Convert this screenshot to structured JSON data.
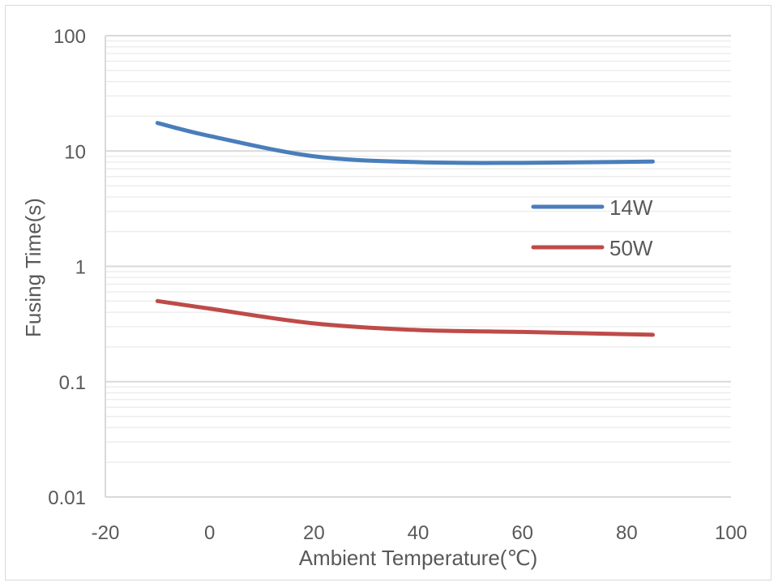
{
  "chart_data": {
    "type": "line",
    "title": "",
    "xlabel": "Ambient Temperature(℃)",
    "ylabel": "Fusing Time(s)",
    "xlim": [
      -20,
      100
    ],
    "ylim": [
      0.01,
      100
    ],
    "yscale": "log",
    "x_ticks": [
      -20,
      0,
      20,
      40,
      60,
      80,
      100
    ],
    "x_tick_labels": [
      "-20",
      "0",
      "20",
      "40",
      "60",
      "80",
      "100"
    ],
    "y_ticks": [
      0.01,
      0.1,
      1,
      10,
      100
    ],
    "y_tick_labels": [
      "0.01",
      "0.1",
      "1",
      "10",
      "100"
    ],
    "grid": true,
    "legend_position": "right",
    "series": [
      {
        "name": "14W",
        "color": "#4a7ebb",
        "x": [
          -10,
          0,
          20,
          40,
          60,
          85
        ],
        "values": [
          17.5,
          13.5,
          9.0,
          8.0,
          7.9,
          8.1
        ]
      },
      {
        "name": "50W",
        "color": "#be4b48",
        "x": [
          -10,
          0,
          20,
          40,
          60,
          85
        ],
        "values": [
          0.5,
          0.43,
          0.32,
          0.28,
          0.27,
          0.255
        ]
      }
    ]
  }
}
